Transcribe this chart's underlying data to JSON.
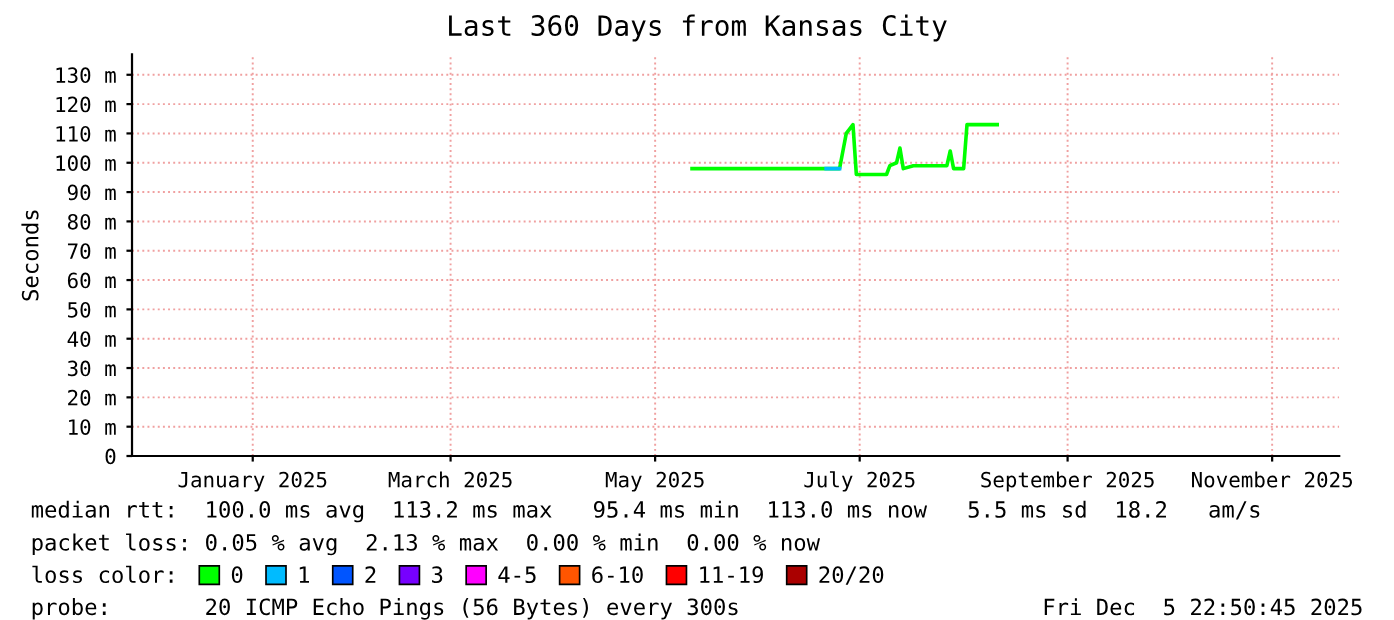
{
  "chart_data": {
    "type": "line",
    "title": "Last 360 Days from Kansas City",
    "ylabel": "Seconds",
    "xlim": [
      "2024-12-10",
      "2025-12-05"
    ],
    "xticks": [
      {
        "value": "2025-01-15",
        "label": "January 2025"
      },
      {
        "value": "2025-03-15",
        "label": "March 2025"
      },
      {
        "value": "2025-05-15",
        "label": "May 2025"
      },
      {
        "value": "2025-07-15",
        "label": "July 2025"
      },
      {
        "value": "2025-09-15",
        "label": "September 2025"
      },
      {
        "value": "2025-11-15",
        "label": "November 2025"
      }
    ],
    "ylim": [
      0,
      137
    ],
    "yticks": [
      0,
      {
        "value": 10,
        "label": "10 m"
      },
      {
        "value": 20,
        "label": "20 m"
      },
      {
        "value": 30,
        "label": "30 m"
      },
      {
        "value": 40,
        "label": "40 m"
      },
      {
        "value": 50,
        "label": "50 m"
      },
      {
        "value": 60,
        "label": "60 m"
      },
      {
        "value": 70,
        "label": "70 m"
      },
      {
        "value": 80,
        "label": "80 m"
      },
      {
        "value": 90,
        "label": "90 m"
      },
      {
        "value": 100,
        "label": "100 m"
      },
      {
        "value": 110,
        "label": "110 m"
      },
      {
        "value": 120,
        "label": "120 m"
      },
      {
        "value": 130,
        "label": "130 m"
      }
    ],
    "grid": true,
    "legend": "bottom",
    "legend_title": "loss color:",
    "series": [
      {
        "name": "0",
        "color": "#00ff00",
        "x": [
          "2025-05-26",
          "2025-07-09",
          "2025-07-10",
          "2025-07-11",
          "2025-07-13",
          "2025-07-14",
          "2025-07-23",
          "2025-07-24",
          "2025-07-26",
          "2025-07-27",
          "2025-07-28",
          "2025-07-31",
          "2025-08-06",
          "2025-08-10",
          "2025-08-11",
          "2025-08-12",
          "2025-08-15",
          "2025-08-16",
          "2025-08-25"
        ],
        "values": [
          98,
          98,
          104,
          110,
          113,
          96,
          96,
          99,
          100,
          105,
          98,
          99,
          99,
          99,
          104,
          98,
          98,
          113,
          113
        ]
      },
      {
        "name": "1",
        "color": "#00bbff",
        "x": [
          "2025-07-05",
          "2025-07-09"
        ],
        "values": [
          98,
          98
        ]
      },
      {
        "name": "2",
        "color": "#0055ff"
      },
      {
        "name": "3",
        "color": "#7700ff"
      },
      {
        "name": "4-5",
        "color": "#ff00ff"
      },
      {
        "name": "6-10",
        "color": "#ff5500"
      },
      {
        "name": "11-19",
        "color": "#ff0000"
      },
      {
        "name": "20/20",
        "color": "#aa0000"
      }
    ],
    "annotations": [
      "median rtt:  100.0 ms avg  113.2 ms max   95.4 ms min  113.0 ms now   5.5 ms sd  18.2   am/s",
      "packet loss: 0.05 % avg  2.13 % max  0.00 % min  0.00 % now",
      "probe:       20 ICMP Echo Pings (56 Bytes) every 300s",
      "Fri Dec  5 22:50:45 2025"
    ]
  }
}
